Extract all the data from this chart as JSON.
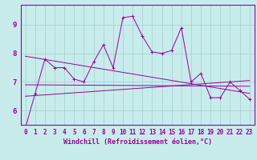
{
  "background_color": "#c8ecec",
  "grid_color": "#aad4d4",
  "line_color": "#990099",
  "xlabel": "Windchill (Refroidissement éolien,°C)",
  "ylabel_values": [
    6,
    7,
    8,
    9
  ],
  "xlim": [
    -0.5,
    23.5
  ],
  "ylim": [
    5.5,
    9.7
  ],
  "x_ticks": [
    0,
    1,
    2,
    3,
    4,
    5,
    6,
    7,
    8,
    9,
    10,
    11,
    12,
    13,
    14,
    15,
    16,
    17,
    18,
    19,
    20,
    21,
    22,
    23
  ],
  "series1_x": [
    0,
    1,
    2,
    3,
    4,
    5,
    6,
    7,
    8,
    9,
    10,
    11,
    12,
    13,
    14,
    15,
    16,
    17,
    18,
    19,
    20,
    21,
    22,
    23
  ],
  "series1_y": [
    5.4,
    6.6,
    7.8,
    7.5,
    7.5,
    7.1,
    7.0,
    7.7,
    8.3,
    7.5,
    9.25,
    9.3,
    8.6,
    8.05,
    8.0,
    8.1,
    8.9,
    7.0,
    7.3,
    6.45,
    6.45,
    7.0,
    6.7,
    6.4
  ],
  "series2_x": [
    0,
    23
  ],
  "series2_y": [
    7.9,
    6.6
  ],
  "series3_x": [
    0,
    23
  ],
  "series3_y": [
    6.5,
    7.05
  ],
  "series4_x": [
    0,
    23
  ],
  "series4_y": [
    6.9,
    6.85
  ],
  "font_size_xlabel": 6,
  "font_size_ytick": 6.5,
  "font_size_xtick": 5.5
}
